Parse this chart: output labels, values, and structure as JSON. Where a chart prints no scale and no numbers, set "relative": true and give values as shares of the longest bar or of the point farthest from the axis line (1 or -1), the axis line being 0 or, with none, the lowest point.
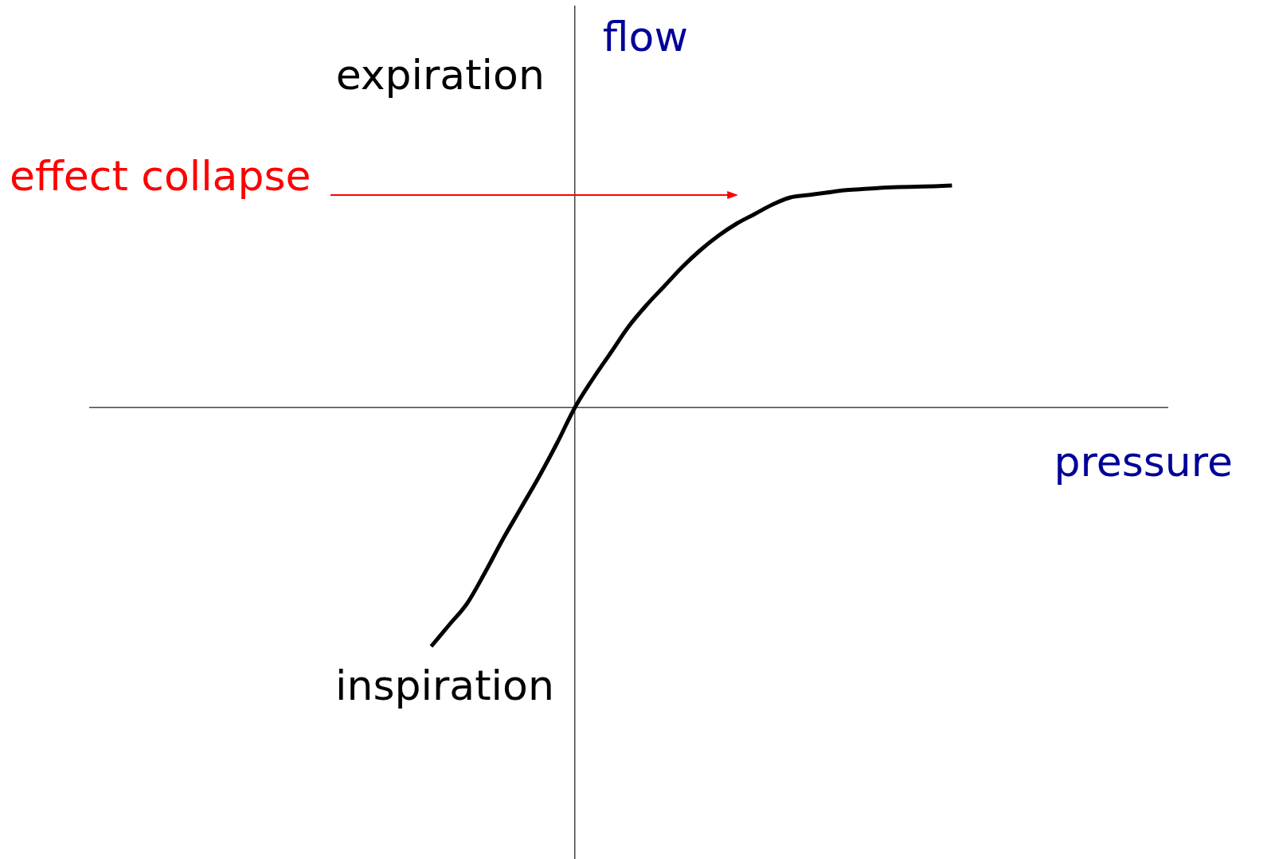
{
  "chart_data": {
    "type": "line",
    "relative": true,
    "xlabel": "pressure",
    "ylabel": "flow",
    "grid": false,
    "legend": false,
    "marker": "none",
    "line_style": "solid",
    "categories": [
      null,
      null,
      null,
      null,
      null,
      null,
      null,
      null,
      null,
      null,
      null,
      null,
      null,
      null,
      null,
      null,
      null,
      null,
      null,
      null,
      null,
      null,
      null,
      null,
      null,
      null,
      null,
      null,
      null,
      null,
      null,
      null,
      null,
      null,
      null,
      null,
      null,
      null,
      null,
      null,
      null,
      null,
      null,
      null,
      null,
      null,
      null,
      null,
      null,
      null,
      null,
      null,
      null,
      null,
      null,
      null,
      null,
      null,
      null,
      null,
      null
    ],
    "series": [
      {
        "color": "#000000",
        "values": [
          null,
          null,
          null,
          null,
          null,
          null,
          null,
          null,
          null,
          null,
          null,
          null,
          null,
          null,
          null,
          null,
          null,
          null,
          null,
          -1.0,
          -0.91,
          -0.82,
          -0.69,
          -0.55,
          -0.42,
          -0.29,
          -0.15,
          0,
          0.12,
          0.23,
          0.34,
          0.43,
          0.51,
          0.59,
          0.66,
          0.72,
          0.77,
          0.81,
          0.85,
          0.88,
          0.89,
          0.9,
          0.91,
          0.915,
          0.92,
          0.923,
          0.925,
          0.927,
          0.93,
          null,
          null,
          null,
          null,
          null,
          null,
          null,
          null,
          null,
          null,
          null,
          null
        ]
      }
    ],
    "annotations": [
      "expiration",
      "effect collapse",
      "inspiration"
    ]
  }
}
